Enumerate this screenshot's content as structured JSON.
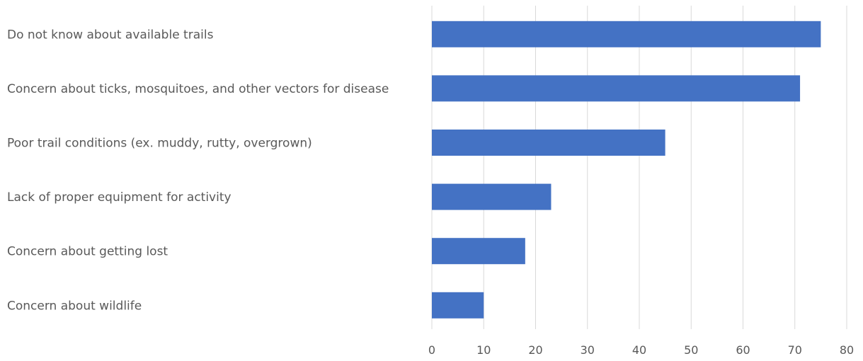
{
  "chart_data": {
    "type": "bar",
    "orientation": "horizontal",
    "categories": [
      "Do not know about available trails",
      "Concern about ticks, mosquitoes, and other vectors for disease",
      "Poor trail conditions (ex. muddy, rutty, overgrown)",
      "Lack of proper equipment for activity",
      "Concern about getting lost",
      "Concern about wildlife"
    ],
    "values": [
      75,
      71,
      45,
      23,
      18,
      10
    ],
    "xlim": [
      0,
      80
    ],
    "xticks": [
      "0",
      "10",
      "20",
      "30",
      "40",
      "50",
      "60",
      "70",
      "80"
    ],
    "grid": "vertical",
    "bar_color": "#4472c4",
    "legend": "none"
  }
}
